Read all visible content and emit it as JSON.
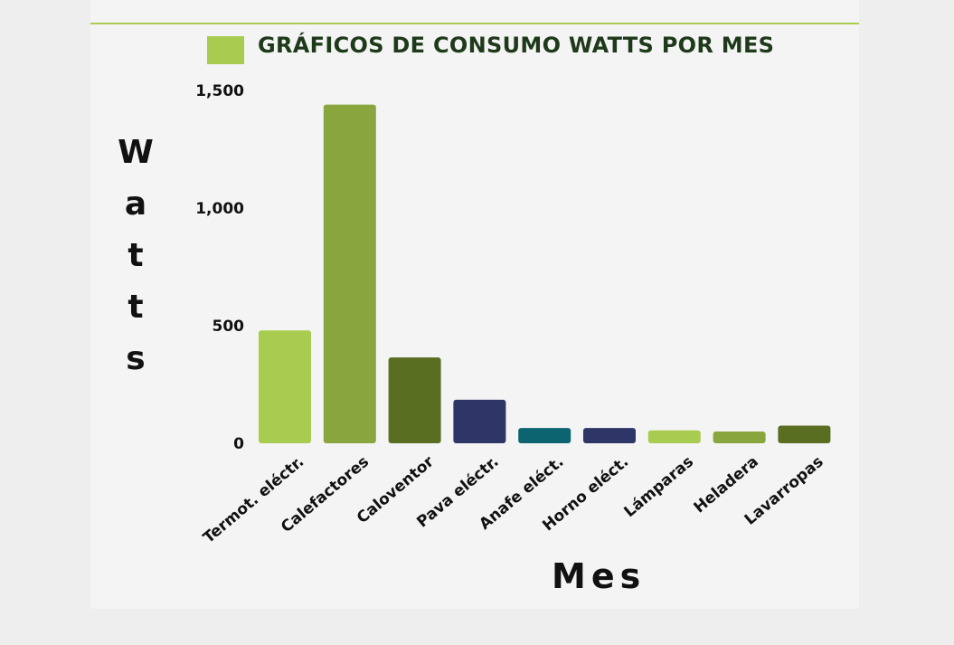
{
  "chart_data": {
    "type": "bar",
    "title": "GRÁFICOS DE CONSUMO WATTS POR MES",
    "ylabel": "Watts",
    "xlabel": "Mes",
    "ylim": [
      0,
      1500
    ],
    "yticks": [
      0,
      500,
      1000,
      1500
    ],
    "ytick_labels": [
      "0",
      "500",
      "1,000",
      "1,500"
    ],
    "categories": [
      "Termot. eléctr.",
      "Calefactores",
      "Caloventor",
      "Pava eléctr.",
      "Anafe  eléct.",
      "Horno eléct.",
      "Lámparas",
      "Heladera",
      "Lavarropas"
    ],
    "values": [
      480,
      1440,
      365,
      185,
      65,
      65,
      55,
      50,
      75
    ],
    "colors": [
      "#a8cc4f",
      "#88a63d",
      "#5a6e21",
      "#2e3567",
      "#0b6470",
      "#2e3567",
      "#a8cc4f",
      "#88a63d",
      "#5a6e21"
    ],
    "legend_color": "#a8cc4f",
    "grid": false
  }
}
